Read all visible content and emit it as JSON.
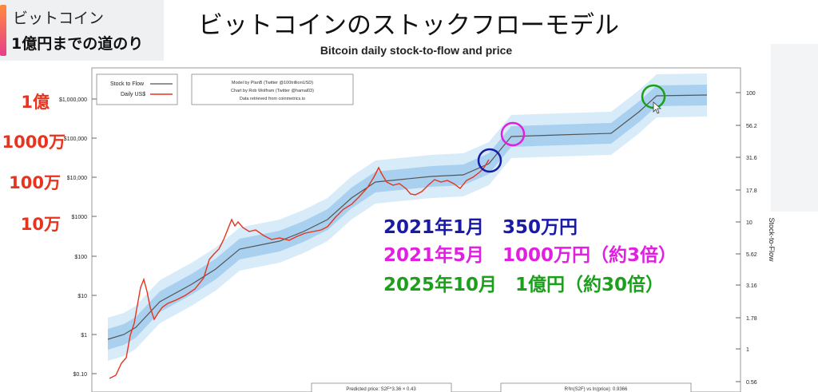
{
  "badge": {
    "line1": "ビットコイン",
    "line2": "1億円までの道のり"
  },
  "main_title": "ビットコインのストックフローモデル",
  "price_labels": [
    {
      "text": "1億",
      "top": 118
    },
    {
      "text": "1000万",
      "top": 163
    },
    {
      "text": "100万",
      "top": 215
    },
    {
      "text": "10万",
      "top": 265
    }
  ],
  "notes": [
    {
      "text": "2021年1月　350万円",
      "color": "#1a1aa8"
    },
    {
      "text": "2021年5月　1000万円（約3倍）",
      "color": "#e020e0"
    },
    {
      "text": "2025年10月　1億円（約30倍）",
      "color": "#1aa01a"
    }
  ],
  "chart_data": {
    "type": "line",
    "title": "Bitcoin daily stock-to-flow and price",
    "y_scale": "log",
    "left_axis_ticks": [
      "$1,000,000",
      "$100,000",
      "$10,000",
      "$1000",
      "$100",
      "$10",
      "$1",
      "$0.10"
    ],
    "right_axis_ticks": [
      "100",
      "56.2",
      "31.6",
      "17.8",
      "10",
      "5.62",
      "3.16",
      "1.78",
      "1",
      "0.56"
    ],
    "right_axis_label": "Stock-to-Flow",
    "legend": [
      "Stock to Flow",
      "Daily US$"
    ],
    "credits": [
      "Model by PlanB (Twitter @100trillionUSD)",
      "Chart by Rob Wolfram (Twitter @hamal03)",
      "Data retrieved from coinmetrics.io"
    ],
    "footer_left": "Predicted price: S2F^3.36 × 0.43",
    "footer_right": "R²ln(S2F) vs ln(price): 0.9366",
    "series": [
      {
        "name": "Stock to Flow",
        "color": "#555555",
        "values": [
          0.7,
          0.9,
          2.5,
          40,
          250,
          600,
          900,
          2000,
          4000,
          20000,
          100000,
          150000,
          1000000,
          1000000
        ]
      },
      {
        "name": "Daily US$",
        "color": "#e8331e",
        "values": [
          0.07,
          2,
          30,
          80,
          1100,
          400,
          220,
          700,
          19000,
          5000,
          10000,
          30000
        ]
      }
    ],
    "highlights": [
      {
        "color": "#1a1aa8"
      },
      {
        "color": "#e020e0"
      },
      {
        "color": "#1aa01a"
      }
    ]
  }
}
